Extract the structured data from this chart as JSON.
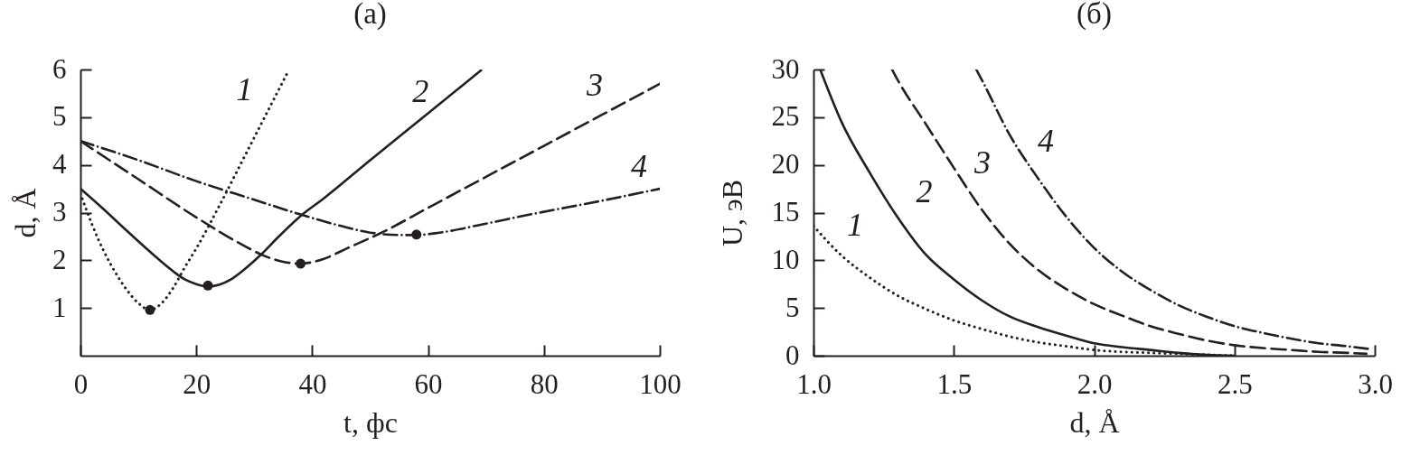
{
  "chart_data": [
    {
      "type": "line",
      "title": "(а)",
      "xlabel": "t, фс",
      "ylabel": "d, Å",
      "xlim": [
        0,
        100
      ],
      "xticks": [
        0,
        20,
        40,
        60,
        80,
        100
      ],
      "ylim": [
        0,
        6
      ],
      "yticks": [
        1,
        2,
        3,
        4,
        5,
        6
      ],
      "series": [
        {
          "name": "1",
          "color": "#231f20",
          "line_style": "dotted",
          "x": [
            0,
            2,
            4,
            6,
            8,
            10,
            12,
            14,
            16,
            18,
            20,
            24,
            28,
            32,
            35.8
          ],
          "values": [
            3.4,
            2.75,
            2.2,
            1.75,
            1.38,
            1.1,
            0.96,
            1.1,
            1.42,
            1.85,
            2.25,
            3.15,
            4.1,
            5.05,
            5.95
          ]
        },
        {
          "name": "2",
          "color": "#231f20",
          "line_style": "solid",
          "x": [
            0,
            4,
            8,
            12,
            16,
            18,
            20,
            22,
            24,
            26,
            28,
            31,
            34,
            38,
            42,
            50,
            60,
            69.3
          ],
          "values": [
            3.5,
            3.07,
            2.62,
            2.18,
            1.77,
            1.6,
            1.5,
            1.45,
            1.49,
            1.6,
            1.78,
            2.1,
            2.47,
            2.93,
            3.3,
            4.1,
            5.08,
            6.0
          ]
        },
        {
          "name": "3",
          "color": "#231f20",
          "line_style": "dashed",
          "x": [
            0,
            10,
            20,
            28,
            32,
            35,
            38,
            40,
            42,
            46,
            52,
            60,
            70,
            80,
            90,
            100
          ],
          "values": [
            4.5,
            3.7,
            2.9,
            2.32,
            2.08,
            1.97,
            1.93,
            1.96,
            2.03,
            2.25,
            2.58,
            3.1,
            3.75,
            4.4,
            5.05,
            5.7
          ]
        },
        {
          "name": "4",
          "color": "#231f20",
          "line_style": "dashdot",
          "x": [
            0,
            10,
            20,
            30,
            38,
            45,
            50,
            55,
            58,
            62,
            70,
            78,
            90,
            100
          ],
          "values": [
            4.5,
            4.1,
            3.66,
            3.27,
            2.96,
            2.72,
            2.58,
            2.53,
            2.53,
            2.58,
            2.77,
            2.97,
            3.25,
            3.5
          ]
        },
        {
          "type": "scatter",
          "color": "#231f20",
          "marker": "circle",
          "x": [
            12,
            22,
            38,
            58
          ],
          "values": [
            0.96,
            1.47,
            1.93,
            2.54
          ]
        }
      ]
    },
    {
      "type": "line",
      "title": "(б)",
      "xlabel": "d, Å",
      "ylabel": "U, эВ",
      "xlim": [
        1,
        3
      ],
      "xticks": [
        {
          "value": 1,
          "label": "1.0"
        },
        1.5,
        {
          "value": 2,
          "label": "2.0"
        },
        2.5,
        {
          "value": 3,
          "label": "3.0"
        }
      ],
      "ylim": [
        0,
        30
      ],
      "yticks": [
        0,
        5,
        10,
        15,
        20,
        25,
        30
      ],
      "series": [
        {
          "name": "1",
          "color": "#231f20",
          "line_style": "dotted",
          "x": [
            1.0,
            1.1,
            1.2,
            1.3,
            1.4,
            1.5,
            1.6,
            1.7,
            1.8,
            1.9,
            2.0,
            2.1,
            2.2,
            2.3,
            2.4,
            2.5
          ],
          "values": [
            13.6,
            10.5,
            8.2,
            6.3,
            4.9,
            3.7,
            2.8,
            2.0,
            1.4,
            1.0,
            0.6,
            0.4,
            0.3,
            0.2,
            0.1,
            0.0
          ]
        },
        {
          "name": "2",
          "color": "#231f20",
          "line_style": "solid",
          "x": [
            1.024,
            1.1,
            1.2,
            1.3,
            1.4,
            1.5,
            1.6,
            1.7,
            1.8,
            1.9,
            2.0,
            2.1,
            2.2,
            2.3,
            2.4,
            2.5
          ],
          "values": [
            30,
            24.5,
            19.2,
            14.5,
            10.6,
            8.0,
            5.8,
            4.1,
            3.0,
            2.1,
            1.3,
            0.9,
            0.6,
            0.3,
            0.1,
            0.0
          ]
        },
        {
          "name": "3",
          "color": "#231f20",
          "line_style": "dashed",
          "x": [
            1.28,
            1.3,
            1.4,
            1.5,
            1.6,
            1.7,
            1.8,
            1.9,
            2.0,
            2.1,
            2.2,
            2.3,
            2.4,
            2.5,
            2.6,
            2.7,
            2.8,
            2.9,
            2.97
          ],
          "values": [
            30,
            28.9,
            24.3,
            19.7,
            15.3,
            11.7,
            9.0,
            7.0,
            5.4,
            4.2,
            3.1,
            2.3,
            1.6,
            1.1,
            0.8,
            0.6,
            0.4,
            0.3,
            0.2
          ]
        },
        {
          "name": "4",
          "color": "#231f20",
          "line_style": "dashdot",
          "x": [
            1.58,
            1.6,
            1.7,
            1.8,
            1.9,
            2.0,
            2.1,
            2.2,
            2.3,
            2.4,
            2.5,
            2.6,
            2.7,
            2.8,
            2.9,
            2.98
          ],
          "values": [
            30,
            28.9,
            23.1,
            18.6,
            14.6,
            11.3,
            8.8,
            6.9,
            5.3,
            4.1,
            3.1,
            2.4,
            1.8,
            1.3,
            1.0,
            0.7
          ]
        }
      ]
    }
  ]
}
